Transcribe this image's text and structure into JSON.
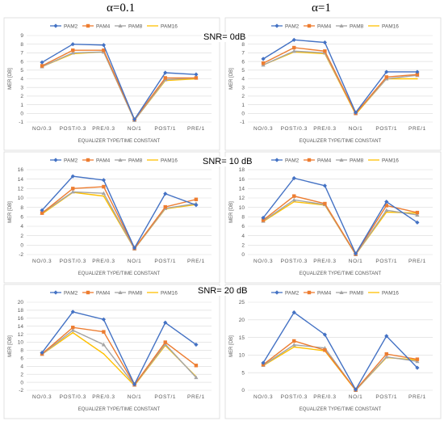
{
  "alpha_labels": [
    "α=0.1",
    "α=1"
  ],
  "snr_labels": [
    "SNR= 0dB",
    "SNR= 10 dB",
    "SNR= 20 dB"
  ],
  "colors": {
    "PAM2": "#4472C4",
    "PAM4": "#ED7D31",
    "PAM8": "#A5A5A5",
    "PAM16": "#FFC000"
  },
  "chart_data": [
    {
      "type": "line",
      "categories": [
        "NO/0.3",
        "POST/0.3",
        "PRE/0.3",
        "NO/1",
        "POST/1",
        "PRE/1"
      ],
      "xlabel": "EQUALIZER TYPE/TIME CONSTANT",
      "ylabel": "MER [DB]",
      "ylim": [
        -1,
        9
      ],
      "yticks": [
        -1,
        0,
        1,
        2,
        3,
        4,
        5,
        6,
        7,
        8,
        9
      ],
      "series": [
        {
          "name": "PAM2",
          "values": [
            5.9,
            8.0,
            7.9,
            -0.7,
            4.7,
            4.5
          ]
        },
        {
          "name": "PAM4",
          "values": [
            5.5,
            7.3,
            7.3,
            -0.7,
            4.1,
            4.1
          ]
        },
        {
          "name": "PAM8",
          "values": [
            5.4,
            7.0,
            7.1,
            -0.8,
            3.9,
            4.1
          ]
        },
        {
          "name": "PAM16",
          "values": [
            5.4,
            6.9,
            7.1,
            -0.8,
            3.8,
            4.0
          ]
        }
      ]
    },
    {
      "type": "line",
      "categories": [
        "NO/0.3",
        "POST/0.3",
        "PRE/0.3",
        "NO/1",
        "POST/1",
        "PRE/1"
      ],
      "xlabel": "EQUALIZER TYPE/TIME CONSTANT",
      "ylabel": "MER [DB]",
      "ylim": [
        -1,
        9
      ],
      "yticks": [
        -1,
        0,
        1,
        2,
        3,
        4,
        5,
        6,
        7,
        8,
        9
      ],
      "series": [
        {
          "name": "PAM2",
          "values": [
            6.3,
            8.5,
            8.2,
            0.1,
            4.8,
            4.8
          ]
        },
        {
          "name": "PAM4",
          "values": [
            5.8,
            7.6,
            7.2,
            0.0,
            4.2,
            4.5
          ]
        },
        {
          "name": "PAM8",
          "values": [
            5.6,
            7.2,
            7.0,
            0.0,
            4.0,
            4.4
          ]
        },
        {
          "name": "PAM16",
          "values": [
            5.6,
            7.1,
            6.9,
            -0.1,
            4.0,
            4.0
          ]
        }
      ]
    },
    {
      "type": "line",
      "categories": [
        "NO/0.3",
        "POST/0.3",
        "PRE/0.3",
        "NO/1",
        "POST/1",
        "PRE/1"
      ],
      "xlabel": "EQUALIZER TYPE/TIME CONSTANT",
      "ylabel": "MER [DB]",
      "ylim": [
        -2,
        16
      ],
      "yticks": [
        -2,
        0,
        2,
        4,
        6,
        8,
        10,
        12,
        14,
        16
      ],
      "series": [
        {
          "name": "PAM2",
          "values": [
            7.4,
            14.6,
            13.8,
            -0.6,
            10.9,
            8.5
          ]
        },
        {
          "name": "PAM4",
          "values": [
            6.8,
            12.0,
            12.4,
            -0.7,
            8.1,
            9.7
          ]
        },
        {
          "name": "PAM8",
          "values": [
            6.8,
            11.3,
            11.0,
            -0.8,
            7.8,
            8.8
          ]
        },
        {
          "name": "PAM16",
          "values": [
            6.6,
            11.2,
            10.4,
            -0.8,
            7.7,
            8.6
          ]
        }
      ]
    },
    {
      "type": "line",
      "categories": [
        "NO/0.3",
        "POST/0.3",
        "PRE/0.3",
        "NO/1",
        "POST/1",
        "PRE/1"
      ],
      "xlabel": "EQUALIZER TYPE/TIME CONSTANT",
      "ylabel": "MER [DB]",
      "ylim": [
        0,
        18
      ],
      "yticks": [
        0,
        2,
        4,
        6,
        8,
        10,
        12,
        14,
        16,
        18
      ],
      "series": [
        {
          "name": "PAM2",
          "values": [
            7.8,
            16.2,
            14.6,
            0.2,
            11.2,
            6.8
          ]
        },
        {
          "name": "PAM4",
          "values": [
            7.3,
            12.4,
            10.8,
            0.1,
            10.4,
            8.9
          ]
        },
        {
          "name": "PAM8",
          "values": [
            7.1,
            11.6,
            10.6,
            0.0,
            9.4,
            8.4
          ]
        },
        {
          "name": "PAM16",
          "values": [
            7.0,
            11.2,
            10.5,
            0.0,
            9.0,
            8.8
          ]
        }
      ]
    },
    {
      "type": "line",
      "categories": [
        "NO/0.3",
        "POST/0.3",
        "PRE/0.3",
        "NO/1",
        "POST/1",
        "PRE/1"
      ],
      "xlabel": "EQUALIZER TYPE/TIME CONSTANT",
      "ylabel": "MER [DB]",
      "ylim": [
        -2,
        20
      ],
      "yticks": [
        -2,
        0,
        2,
        4,
        6,
        8,
        10,
        12,
        14,
        16,
        18,
        20
      ],
      "series": [
        {
          "name": "PAM2",
          "values": [
            7.4,
            17.6,
            15.7,
            -0.5,
            14.9,
            9.4
          ]
        },
        {
          "name": "PAM4",
          "values": [
            7.1,
            13.7,
            12.6,
            -0.6,
            10.0,
            4.2
          ]
        },
        {
          "name": "PAM8",
          "values": [
            7.0,
            13.0,
            9.4,
            -0.7,
            9.5,
            1.2
          ]
        },
        {
          "name": "PAM16",
          "values": [
            7.0,
            12.4,
            7.1,
            -0.8,
            9.2,
            1.4
          ]
        }
      ]
    },
    {
      "type": "line",
      "categories": [
        "NO/0.3",
        "POST/0.3",
        "PRE/0.3",
        "NO/1",
        "POST/1",
        "PRE/1"
      ],
      "xlabel": "EQUALIZER TYPE/TIME CONSTANT",
      "ylabel": "MER [DB]",
      "ylim": [
        0,
        25
      ],
      "yticks": [
        0,
        5,
        10,
        15,
        20,
        25
      ],
      "series": [
        {
          "name": "PAM2",
          "values": [
            7.8,
            22.1,
            15.8,
            0.2,
            15.4,
            6.4
          ]
        },
        {
          "name": "PAM4",
          "values": [
            7.3,
            14.0,
            11.4,
            0.1,
            10.3,
            8.8
          ]
        },
        {
          "name": "PAM8",
          "values": [
            7.1,
            12.9,
            12.0,
            0.0,
            9.5,
            8.2
          ]
        },
        {
          "name": "PAM16",
          "values": [
            7.0,
            12.3,
            11.2,
            0.0,
            9.3,
            8.6
          ]
        }
      ]
    }
  ]
}
